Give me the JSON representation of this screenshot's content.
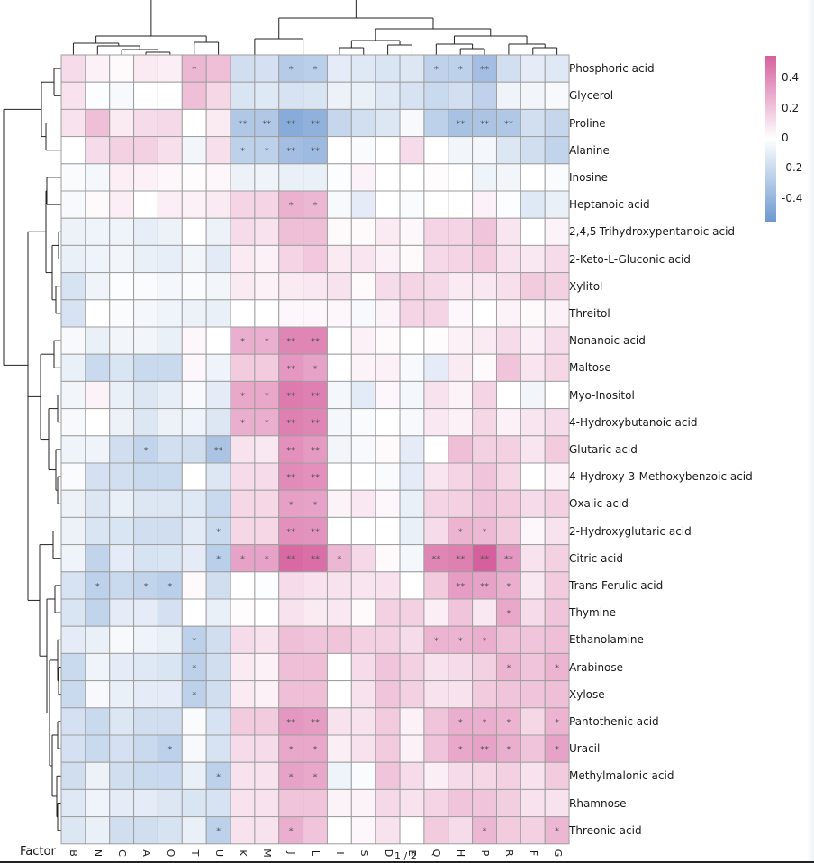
{
  "viewer": {
    "page_indicator": "1 / 2"
  },
  "chart_data": {
    "type": "heatmap",
    "title": "",
    "xlabel": "Factor",
    "ylabel": "",
    "columns": [
      "B",
      "N",
      "C",
      "A",
      "O",
      "T",
      "U",
      "K",
      "M",
      "J",
      "L",
      "I",
      "S",
      "D",
      "E",
      "Q",
      "H",
      "P",
      "R",
      "F",
      "G"
    ],
    "rows": [
      "Phosphoric acid",
      "Glycerol",
      "Proline",
      "Alanine",
      "Inosine",
      "Heptanoic acid",
      "2,4,5-Trihydroxypentanoic acid",
      "2-Keto-L-Gluconic acid",
      "Xylitol",
      "Threitol",
      "Nonanoic acid",
      "Maltose",
      "Myo-Inositol",
      "4-Hydroxybutanoic acid",
      "Glutaric acid",
      "4-Hydroxy-3-Methoxybenzoic acid",
      "Oxalic acid",
      "2-Hydroxyglutaric acid",
      "Citric acid",
      "Trans-Ferulic acid",
      "Thymine",
      "Ethanolamine",
      "Arabinose",
      "Xylose",
      "Pantothenic acid",
      "Uracil",
      "Methylmalonic acid",
      "Rhamnose",
      "Threonic acid"
    ],
    "values": [
      [
        0.12,
        0.05,
        0.02,
        0.07,
        0.06,
        0.25,
        0.22,
        -0.18,
        -0.16,
        -0.28,
        -0.26,
        -0.1,
        -0.12,
        -0.14,
        -0.13,
        -0.24,
        -0.25,
        -0.35,
        -0.17,
        -0.1,
        -0.12
      ],
      [
        0.1,
        -0.01,
        -0.03,
        0.0,
        0.0,
        0.22,
        0.14,
        -0.14,
        -0.12,
        -0.15,
        -0.14,
        -0.07,
        -0.08,
        -0.12,
        -0.15,
        -0.2,
        -0.17,
        -0.24,
        -0.06,
        -0.05,
        -0.03
      ],
      [
        0.1,
        0.22,
        0.07,
        0.12,
        0.13,
        0.0,
        0.07,
        -0.3,
        -0.3,
        -0.45,
        -0.42,
        -0.22,
        -0.17,
        -0.13,
        -0.03,
        -0.25,
        -0.33,
        -0.32,
        -0.3,
        -0.17,
        -0.22
      ],
      [
        0.0,
        0.12,
        0.16,
        0.16,
        0.11,
        -0.05,
        0.11,
        -0.25,
        -0.25,
        -0.35,
        -0.37,
        0.0,
        -0.02,
        0.0,
        0.12,
        0.0,
        -0.05,
        -0.04,
        -0.13,
        -0.18,
        -0.23
      ],
      [
        -0.02,
        -0.04,
        0.06,
        0.05,
        0.03,
        0.01,
        0.03,
        -0.07,
        -0.06,
        -0.08,
        -0.08,
        -0.01,
        0.04,
        0.0,
        0.0,
        0.01,
        0.0,
        -0.06,
        -0.05,
        0.0,
        -0.02
      ],
      [
        -0.03,
        0.02,
        0.06,
        0.0,
        0.06,
        0.05,
        0.07,
        0.15,
        0.15,
        0.27,
        0.25,
        -0.03,
        -0.1,
        0.0,
        -0.02,
        0.0,
        0.0,
        0.05,
        -0.01,
        -0.12,
        -0.08
      ],
      [
        -0.07,
        -0.06,
        -0.06,
        -0.09,
        -0.07,
        0.0,
        -0.07,
        0.12,
        0.1,
        0.22,
        0.22,
        0.02,
        0.02,
        0.07,
        0.03,
        0.15,
        0.15,
        0.2,
        0.09,
        0.0,
        0.04
      ],
      [
        -0.08,
        -0.06,
        -0.05,
        -0.08,
        -0.09,
        -0.05,
        -0.11,
        0.07,
        0.05,
        0.15,
        0.19,
        0.07,
        0.09,
        0.05,
        0.02,
        0.13,
        0.15,
        0.18,
        0.1,
        0.08,
        0.12
      ],
      [
        -0.15,
        -0.06,
        -0.01,
        -0.02,
        -0.04,
        -0.02,
        -0.05,
        0.07,
        0.05,
        0.07,
        0.08,
        0.1,
        0.02,
        0.12,
        0.15,
        0.13,
        0.07,
        0.08,
        0.11,
        0.18,
        0.16
      ],
      [
        -0.15,
        0.0,
        -0.02,
        -0.04,
        -0.06,
        -0.07,
        -0.08,
        0.0,
        0.0,
        0.03,
        0.03,
        0.03,
        -0.03,
        0.04,
        0.15,
        0.15,
        0.03,
        0.0,
        0.04,
        0.02,
        0.05
      ],
      [
        -0.03,
        -0.08,
        -0.05,
        -0.05,
        -0.08,
        0.03,
        0.0,
        0.28,
        0.28,
        0.42,
        0.42,
        0.0,
        0.05,
        0.02,
        0.0,
        0.01,
        0.05,
        0.07,
        0.12,
        0.06,
        0.12
      ],
      [
        -0.08,
        -0.2,
        -0.14,
        -0.2,
        -0.2,
        0.03,
        -0.06,
        0.18,
        0.18,
        0.36,
        0.32,
        0.0,
        0.04,
        0.05,
        -0.03,
        -0.1,
        0.07,
        0.02,
        0.2,
        0.09,
        0.14
      ],
      [
        -0.05,
        0.04,
        -0.08,
        -0.13,
        -0.09,
        -0.03,
        -0.1,
        0.3,
        0.3,
        0.46,
        0.44,
        -0.04,
        -0.11,
        0.03,
        -0.04,
        0.1,
        0.04,
        0.15,
        0.0,
        -0.05,
        0.0
      ],
      [
        -0.03,
        0.0,
        -0.07,
        -0.13,
        -0.07,
        -0.06,
        -0.13,
        0.28,
        0.28,
        0.44,
        0.42,
        -0.04,
        -0.02,
        0.0,
        -0.03,
        0.08,
        0.05,
        0.14,
        0.05,
        0.09,
        0.12
      ],
      [
        -0.06,
        -0.06,
        -0.18,
        -0.23,
        -0.17,
        -0.18,
        -0.32,
        0.1,
        0.08,
        0.38,
        0.35,
        -0.05,
        -0.03,
        0.02,
        -0.1,
        0.0,
        0.22,
        0.16,
        0.16,
        0.09,
        0.18
      ],
      [
        -0.02,
        -0.16,
        -0.17,
        -0.2,
        -0.2,
        0.0,
        -0.13,
        0.12,
        0.12,
        0.4,
        0.38,
        0.0,
        0.0,
        -0.02,
        -0.1,
        0.09,
        0.15,
        0.2,
        0.14,
        0.0,
        0.05
      ],
      [
        -0.07,
        -0.13,
        -0.08,
        -0.13,
        -0.13,
        -0.12,
        -0.2,
        0.14,
        0.14,
        0.33,
        0.32,
        0.04,
        0.08,
        0.03,
        -0.08,
        0.15,
        0.16,
        0.2,
        0.18,
        0.12,
        0.16
      ],
      [
        -0.07,
        -0.14,
        -0.14,
        -0.18,
        -0.18,
        -0.11,
        -0.2,
        0.14,
        0.14,
        0.38,
        0.37,
        0.0,
        0.0,
        0.0,
        -0.08,
        0.12,
        0.26,
        0.24,
        0.18,
        0.03,
        0.1
      ],
      [
        -0.06,
        -0.23,
        -0.1,
        -0.15,
        -0.14,
        -0.1,
        -0.26,
        0.32,
        0.32,
        0.52,
        0.5,
        0.25,
        0.13,
        0.02,
        -0.04,
        0.42,
        0.44,
        0.58,
        0.36,
        0.1,
        0.16
      ],
      [
        -0.15,
        -0.25,
        -0.2,
        -0.23,
        -0.26,
        0.02,
        -0.18,
        0.0,
        -0.01,
        0.12,
        0.1,
        0.1,
        0.09,
        0.1,
        0.0,
        0.18,
        0.34,
        0.32,
        0.28,
        0.08,
        0.18
      ],
      [
        -0.14,
        -0.23,
        -0.1,
        -0.1,
        -0.16,
        0.0,
        -0.08,
        0.01,
        0.0,
        0.1,
        0.07,
        0.08,
        0.02,
        0.16,
        0.16,
        0.06,
        0.2,
        0.08,
        0.3,
        0.12,
        0.2
      ],
      [
        -0.1,
        -0.08,
        -0.03,
        -0.06,
        -0.08,
        -0.25,
        -0.18,
        0.12,
        0.1,
        0.22,
        0.2,
        0.2,
        0.16,
        0.16,
        0.12,
        0.26,
        0.26,
        0.28,
        0.22,
        0.2,
        0.22
      ],
      [
        -0.2,
        -0.06,
        -0.1,
        -0.12,
        -0.14,
        -0.25,
        -0.18,
        0.07,
        0.05,
        0.22,
        0.22,
        0.0,
        0.12,
        0.2,
        0.16,
        0.1,
        0.12,
        0.16,
        0.26,
        0.2,
        0.26
      ],
      [
        -0.2,
        -0.03,
        -0.08,
        -0.1,
        -0.1,
        -0.25,
        -0.18,
        0.07,
        0.05,
        0.22,
        0.22,
        0.0,
        0.1,
        0.2,
        0.16,
        0.1,
        0.1,
        0.18,
        0.2,
        0.2,
        0.22
      ],
      [
        -0.16,
        -0.2,
        -0.13,
        -0.18,
        -0.18,
        -0.02,
        -0.15,
        0.18,
        0.18,
        0.36,
        0.34,
        0.1,
        0.1,
        0.18,
        0.05,
        0.2,
        0.28,
        0.28,
        0.26,
        0.14,
        0.26
      ],
      [
        -0.16,
        -0.2,
        -0.16,
        -0.2,
        -0.25,
        -0.03,
        -0.15,
        0.12,
        0.12,
        0.3,
        0.3,
        0.06,
        0.1,
        0.18,
        0.05,
        0.2,
        0.3,
        0.32,
        0.28,
        0.2,
        0.32
      ],
      [
        -0.18,
        -0.07,
        -0.18,
        -0.2,
        -0.2,
        -0.08,
        -0.25,
        0.1,
        0.1,
        0.32,
        0.3,
        -0.06,
        -0.02,
        0.2,
        0.12,
        0.06,
        0.12,
        0.14,
        0.16,
        0.1,
        0.18
      ],
      [
        -0.12,
        -0.06,
        -0.1,
        -0.1,
        -0.13,
        -0.14,
        -0.15,
        0.1,
        0.1,
        0.2,
        0.2,
        0.04,
        0.04,
        0.13,
        0.1,
        0.15,
        0.2,
        0.2,
        0.17,
        0.1,
        0.1
      ],
      [
        -0.13,
        -0.08,
        -0.18,
        -0.18,
        -0.15,
        -0.08,
        -0.25,
        0.1,
        0.1,
        0.28,
        0.2,
        0.0,
        0.03,
        0.1,
        0.0,
        0.18,
        0.12,
        0.25,
        0.18,
        0.16,
        0.25
      ]
    ],
    "significance": [
      [
        "",
        "",
        "",
        "",
        "",
        "*",
        "",
        "",
        "",
        "*",
        "*",
        "",
        "",
        "",
        "",
        "*",
        "*",
        "**",
        "",
        "",
        ""
      ],
      [
        "",
        "",
        "",
        "",
        "",
        "",
        "",
        "",
        "",
        "",
        "",
        "",
        "",
        "",
        "",
        "",
        "",
        "",
        "",
        "",
        ""
      ],
      [
        "",
        "",
        "",
        "",
        "",
        "",
        "",
        "**",
        "**",
        "**",
        "**",
        "",
        "",
        "",
        "",
        "",
        "**",
        "**",
        "**",
        "",
        ""
      ],
      [
        "",
        "",
        "",
        "",
        "",
        "",
        "",
        "*",
        "*",
        "**",
        "**",
        "",
        "",
        "",
        "",
        "",
        "",
        "",
        "",
        "",
        ""
      ],
      [
        "",
        "",
        "",
        "",
        "",
        "",
        "",
        "",
        "",
        "",
        "",
        "",
        "",
        "",
        "",
        "",
        "",
        "",
        "",
        "",
        ""
      ],
      [
        "",
        "",
        "",
        "",
        "",
        "",
        "",
        "",
        "",
        "*",
        "*",
        "",
        "",
        "",
        "",
        "",
        "",
        "",
        "",
        "",
        ""
      ],
      [
        "",
        "",
        "",
        "",
        "",
        "",
        "",
        "",
        "",
        "",
        "",
        "",
        "",
        "",
        "",
        "",
        "",
        "",
        "",
        "",
        ""
      ],
      [
        "",
        "",
        "",
        "",
        "",
        "",
        "",
        "",
        "",
        "",
        "",
        "",
        "",
        "",
        "",
        "",
        "",
        "",
        "",
        "",
        ""
      ],
      [
        "",
        "",
        "",
        "",
        "",
        "",
        "",
        "",
        "",
        "",
        "",
        "",
        "",
        "",
        "",
        "",
        "",
        "",
        "",
        "",
        ""
      ],
      [
        "",
        "",
        "",
        "",
        "",
        "",
        "",
        "",
        "",
        "",
        "",
        "",
        "",
        "",
        "",
        "",
        "",
        "",
        "",
        "",
        ""
      ],
      [
        "",
        "",
        "",
        "",
        "",
        "",
        "",
        "*",
        "*",
        "**",
        "**",
        "",
        "",
        "",
        "",
        "",
        "",
        "",
        "",
        "",
        ""
      ],
      [
        "",
        "",
        "",
        "",
        "",
        "",
        "",
        "",
        "",
        "**",
        "*",
        "",
        "",
        "",
        "",
        "",
        "",
        "",
        "",
        "",
        ""
      ],
      [
        "",
        "",
        "",
        "",
        "",
        "",
        "",
        "*",
        "*",
        "**",
        "**",
        "",
        "",
        "",
        "",
        "",
        "",
        "",
        "",
        "",
        ""
      ],
      [
        "",
        "",
        "",
        "",
        "",
        "",
        "",
        "*",
        "*",
        "**",
        "**",
        "",
        "",
        "",
        "",
        "",
        "",
        "",
        "",
        "",
        ""
      ],
      [
        "",
        "",
        "",
        "*",
        "",
        "",
        "**",
        "",
        "",
        "**",
        "**",
        "",
        "",
        "",
        "",
        "",
        "",
        "",
        "",
        "",
        ""
      ],
      [
        "",
        "",
        "",
        "",
        "",
        "",
        "",
        "",
        "",
        "**",
        "**",
        "",
        "",
        "",
        "",
        "",
        "",
        "",
        "",
        "",
        ""
      ],
      [
        "",
        "",
        "",
        "",
        "",
        "",
        "",
        "",
        "",
        "*",
        "*",
        "",
        "",
        "",
        "",
        "",
        "",
        "",
        "",
        "",
        ""
      ],
      [
        "",
        "",
        "",
        "",
        "",
        "",
        "*",
        "",
        "",
        "**",
        "**",
        "",
        "",
        "",
        "",
        "",
        "*",
        "*",
        "",
        "",
        ""
      ],
      [
        "",
        "",
        "",
        "",
        "",
        "",
        "*",
        "*",
        "*",
        "**",
        "**",
        "*",
        "",
        "",
        "",
        "**",
        "**",
        "**",
        "**",
        "",
        ""
      ],
      [
        "",
        "*",
        "",
        "*",
        "*",
        "",
        "",
        "",
        "",
        "",
        "",
        "",
        "",
        "",
        "",
        "",
        "**",
        "**",
        "*",
        "",
        ""
      ],
      [
        "",
        "",
        "",
        "",
        "",
        "",
        "",
        "",
        "",
        "",
        "",
        "",
        "",
        "",
        "",
        "",
        "",
        "",
        "*",
        "",
        ""
      ],
      [
        "",
        "",
        "",
        "",
        "",
        "*",
        "",
        "",
        "",
        "",
        "",
        "",
        "",
        "",
        "",
        "*",
        "*",
        "*",
        "",
        "",
        ""
      ],
      [
        "",
        "",
        "",
        "",
        "",
        "*",
        "",
        "",
        "",
        "",
        "",
        "",
        "",
        "",
        "",
        "",
        "",
        "",
        "*",
        "",
        "*"
      ],
      [
        "",
        "",
        "",
        "",
        "",
        "*",
        "",
        "",
        "",
        "",
        "",
        "",
        "",
        "",
        "",
        "",
        "",
        "",
        "",
        "",
        ""
      ],
      [
        "",
        "",
        "",
        "",
        "",
        "",
        "",
        "",
        "",
        "**",
        "**",
        "",
        "",
        "",
        "",
        "",
        "*",
        "*",
        "*",
        "",
        "*"
      ],
      [
        "",
        "",
        "",
        "",
        "*",
        "",
        "",
        "",
        "",
        "*",
        "*",
        "",
        "",
        "",
        "",
        "",
        "*",
        "**",
        "*",
        "",
        "*"
      ],
      [
        "",
        "",
        "",
        "",
        "",
        "",
        "*",
        "",
        "",
        "*",
        "*",
        "",
        "",
        "",
        "",
        "",
        "",
        "",
        "",
        "",
        ""
      ],
      [
        "",
        "",
        "",
        "",
        "",
        "",
        "",
        "",
        "",
        "",
        "",
        "",
        "",
        "",
        "",
        "",
        "",
        "",
        "",
        "",
        ""
      ],
      [
        "",
        "",
        "",
        "",
        "",
        "",
        "*",
        "",
        "",
        "*",
        "",
        "",
        "",
        "",
        "",
        "",
        "",
        "*",
        "",
        "",
        "*"
      ]
    ],
    "color_scale": {
      "low": "#6e99d1",
      "mid": "#ffffff",
      "high": "#d6609e",
      "range": [
        -0.55,
        0.55
      ]
    },
    "colorbar_ticks": [
      "0.4",
      "0.2",
      "0",
      "-0.2",
      "-0.4"
    ],
    "colorbar_tick_values": [
      0.4,
      0.2,
      0,
      -0.2,
      -0.4
    ],
    "legend": "right",
    "grid": true,
    "dendrograms": {
      "rows": true,
      "columns": true
    }
  }
}
